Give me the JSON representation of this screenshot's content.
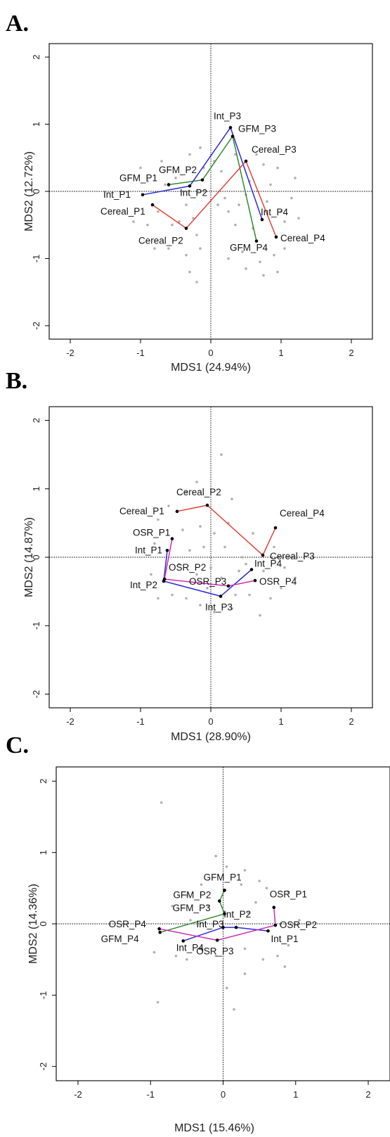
{
  "colors": {
    "GFM": "#2e8b2e",
    "Int": "#2b2bd4",
    "Cereal": "#e0453a",
    "OSR": "#d02ab8",
    "points": "#b0b0b0"
  },
  "chart_data": [
    {
      "type": "scatter",
      "panel": "A.",
      "xlabel": "MDS1 (24.94%)",
      "ylabel": "MDS2 (12.72%)",
      "xlim": [
        -2.3,
        2.3
      ],
      "ylim": [
        -2.2,
        2.2
      ],
      "xticks": [
        "-2",
        "-1",
        "0",
        "1",
        "2"
      ],
      "yticks": [
        "-2",
        "-1",
        "0",
        "1",
        "2"
      ],
      "reference_lines": {
        "x": 0,
        "y": 0
      },
      "series": [
        {
          "name": "GFM",
          "color_key": "GFM",
          "points": [
            {
              "label": "GFM_P1",
              "x": -0.6,
              "y": 0.1
            },
            {
              "label": "GFM_P2",
              "x": -0.12,
              "y": 0.17
            },
            {
              "label": "GFM_P3",
              "x": 0.31,
              "y": 0.82
            },
            {
              "label": "GFM_P4",
              "x": 0.65,
              "y": -0.74
            }
          ]
        },
        {
          "name": "Int",
          "color_key": "Int",
          "points": [
            {
              "label": "Int_P1",
              "x": -0.97,
              "y": -0.05
            },
            {
              "label": "Int_P2",
              "x": -0.3,
              "y": 0.08
            },
            {
              "label": "Int_P3",
              "x": 0.28,
              "y": 0.95
            },
            {
              "label": "Int_P4",
              "x": 0.73,
              "y": -0.42
            }
          ]
        },
        {
          "name": "Cereal",
          "color_key": "Cereal",
          "points": [
            {
              "label": "Cereal_P1",
              "x": -0.83,
              "y": -0.2
            },
            {
              "label": "Cereal_P2",
              "x": -0.35,
              "y": -0.55
            },
            {
              "label": "Cereal_P3",
              "x": 0.5,
              "y": 0.45
            },
            {
              "label": "Cereal_P4",
              "x": 0.93,
              "y": -0.68
            }
          ]
        }
      ],
      "background_points": [
        [
          -1.0,
          0.35
        ],
        [
          -1.1,
          -0.45
        ],
        [
          -0.9,
          -0.5
        ],
        [
          -0.75,
          -0.3
        ],
        [
          -0.7,
          0.45
        ],
        [
          -0.5,
          0.2
        ],
        [
          -0.55,
          -0.5
        ],
        [
          -0.45,
          -0.45
        ],
        [
          -0.25,
          -0.4
        ],
        [
          -0.2,
          -0.65
        ],
        [
          -0.15,
          -0.85
        ],
        [
          -0.35,
          -0.95
        ],
        [
          -0.6,
          -0.85
        ],
        [
          -0.8,
          -0.85
        ],
        [
          -0.3,
          0.55
        ],
        [
          -0.15,
          0.65
        ],
        [
          -0.1,
          0.35
        ],
        [
          -0.65,
          0.1
        ],
        [
          0.05,
          0.45
        ],
        [
          0.15,
          0.3
        ],
        [
          0.2,
          -0.1
        ],
        [
          0.25,
          -0.3
        ],
        [
          0.35,
          -0.5
        ],
        [
          0.4,
          -0.2
        ],
        [
          0.5,
          -0.05
        ],
        [
          0.55,
          0.15
        ],
        [
          0.6,
          -0.55
        ],
        [
          0.75,
          0.4
        ],
        [
          0.8,
          -0.15
        ],
        [
          0.85,
          0.1
        ],
        [
          1.0,
          -0.3
        ],
        [
          1.05,
          -0.45
        ],
        [
          1.15,
          -0.1
        ],
        [
          1.25,
          -0.4
        ],
        [
          0.45,
          -0.9
        ],
        [
          0.5,
          -1.15
        ],
        [
          0.75,
          -1.25
        ],
        [
          0.7,
          -1.05
        ],
        [
          0.95,
          -1.2
        ],
        [
          0.9,
          -0.95
        ],
        [
          1.05,
          -0.85
        ],
        [
          0.25,
          -1.0
        ],
        [
          -0.3,
          -1.2
        ],
        [
          -0.2,
          -1.35
        ],
        [
          -0.1,
          0.0
        ],
        [
          0.1,
          -0.2
        ],
        [
          0.35,
          0.55
        ],
        [
          0.65,
          0.55
        ],
        [
          0.95,
          0.35
        ],
        [
          1.2,
          0.2
        ],
        [
          -0.9,
          0.15
        ],
        [
          -0.35,
          -0.2
        ]
      ]
    },
    {
      "type": "scatter",
      "panel": "B.",
      "xlabel": "MDS1 (28.90%)",
      "ylabel": "MDS2 (14.87%)",
      "xlim": [
        -2.3,
        2.3
      ],
      "ylim": [
        -2.2,
        2.2
      ],
      "xticks": [
        "-2",
        "-1",
        "0",
        "1",
        "2"
      ],
      "yticks": [
        "-2",
        "-1",
        "0",
        "1",
        "2"
      ],
      "reference_lines": {
        "x": 0,
        "y": 0
      },
      "series": [
        {
          "name": "Cereal",
          "color_key": "Cereal",
          "points": [
            {
              "label": "Cereal_P1",
              "x": -0.48,
              "y": 0.67
            },
            {
              "label": "Cereal_P2",
              "x": -0.05,
              "y": 0.76
            },
            {
              "label": "Cereal_P3",
              "x": 0.74,
              "y": 0.03
            },
            {
              "label": "Cereal_P4",
              "x": 0.92,
              "y": 0.43
            }
          ]
        },
        {
          "name": "Int",
          "color_key": "Int",
          "points": [
            {
              "label": "Int_P1",
              "x": -0.62,
              "y": 0.1
            },
            {
              "label": "Int_P2",
              "x": -0.67,
              "y": -0.35
            },
            {
              "label": "Int_P3",
              "x": 0.14,
              "y": -0.57
            },
            {
              "label": "Int_P4",
              "x": 0.58,
              "y": -0.18
            }
          ]
        },
        {
          "name": "OSR",
          "color_key": "OSR",
          "points": [
            {
              "label": "OSR_P1",
              "x": -0.55,
              "y": 0.27
            },
            {
              "label": "OSR_P2",
              "x": -0.66,
              "y": -0.32
            },
            {
              "label": "OSR_P3",
              "x": 0.25,
              "y": -0.42
            },
            {
              "label": "OSR_P4",
              "x": 0.63,
              "y": -0.34
            }
          ]
        }
      ],
      "background_points": [
        [
          -0.2,
          1.1
        ],
        [
          0.15,
          1.5
        ],
        [
          -0.35,
          0.95
        ],
        [
          0.3,
          0.85
        ],
        [
          -0.75,
          0.55
        ],
        [
          -0.4,
          0.4
        ],
        [
          -0.15,
          0.45
        ],
        [
          0.05,
          0.35
        ],
        [
          0.25,
          0.5
        ],
        [
          0.6,
          0.35
        ],
        [
          0.9,
          0.15
        ],
        [
          1.05,
          -0.15
        ],
        [
          1.2,
          -0.3
        ],
        [
          1.0,
          -0.45
        ],
        [
          0.85,
          -0.6
        ],
        [
          0.55,
          -0.55
        ],
        [
          0.3,
          -0.75
        ],
        [
          0.05,
          -0.8
        ],
        [
          -0.15,
          -0.7
        ],
        [
          -0.35,
          -0.6
        ],
        [
          -0.55,
          -0.55
        ],
        [
          -0.75,
          -0.6
        ],
        [
          -0.85,
          -0.25
        ],
        [
          -0.8,
          0.2
        ],
        [
          -0.45,
          -0.1
        ],
        [
          -0.2,
          -0.25
        ],
        [
          0.0,
          -0.15
        ],
        [
          0.15,
          -0.3
        ],
        [
          0.4,
          -0.2
        ],
        [
          0.45,
          0.0
        ],
        [
          -0.3,
          0.1
        ],
        [
          -0.1,
          0.15
        ],
        [
          0.7,
          -0.85
        ],
        [
          0.5,
          -0.1
        ],
        [
          -0.6,
          0.75
        ],
        [
          0.2,
          0.15
        ],
        [
          0.75,
          -0.2
        ],
        [
          -0.05,
          -0.45
        ],
        [
          0.35,
          -0.55
        ]
      ]
    },
    {
      "type": "scatter",
      "panel": "C.",
      "xlabel": "MDS1 (15.46%)",
      "ylabel": "MDS2 (14.36%)",
      "xlim": [
        -2.3,
        2.3
      ],
      "ylim": [
        -2.2,
        2.2
      ],
      "xticks": [
        "-2",
        "-1",
        "0",
        "1",
        "2"
      ],
      "yticks": [
        "-2",
        "-1",
        "0",
        "1",
        "2"
      ],
      "reference_lines": {
        "x": 0,
        "y": 0
      },
      "series": [
        {
          "name": "GFM",
          "color_key": "GFM",
          "points": [
            {
              "label": "GFM_P1",
              "x": 0.02,
              "y": 0.47
            },
            {
              "label": "GFM_P2",
              "x": -0.05,
              "y": 0.32
            },
            {
              "label": "GFM_P3",
              "x": 0.02,
              "y": 0.14
            },
            {
              "label": "GFM_P4",
              "x": -0.87,
              "y": -0.12
            }
          ]
        },
        {
          "name": "Int",
          "color_key": "Int",
          "points": [
            {
              "label": "Int_P1",
              "x": 0.62,
              "y": -0.1
            },
            {
              "label": "Int_P2",
              "x": 0.18,
              "y": -0.05
            },
            {
              "label": "Int_P3",
              "x": 0.0,
              "y": -0.05
            },
            {
              "label": "Int_P4",
              "x": -0.55,
              "y": -0.24
            }
          ]
        },
        {
          "name": "OSR",
          "color_key": "OSR",
          "points": [
            {
              "label": "OSR_P1",
              "x": 0.7,
              "y": 0.23
            },
            {
              "label": "OSR_P2",
              "x": 0.72,
              "y": -0.02
            },
            {
              "label": "OSR_P3",
              "x": -0.08,
              "y": -0.23
            },
            {
              "label": "OSR_P4",
              "x": -0.88,
              "y": -0.07
            }
          ]
        }
      ],
      "background_points": [
        [
          -0.85,
          1.7
        ],
        [
          -0.1,
          0.95
        ],
        [
          0.05,
          0.8
        ],
        [
          0.3,
          0.75
        ],
        [
          0.6,
          0.5
        ],
        [
          0.9,
          0.45
        ],
        [
          0.45,
          0.3
        ],
        [
          0.35,
          0.15
        ],
        [
          -0.3,
          0.55
        ],
        [
          -0.5,
          0.4
        ],
        [
          -0.7,
          0.25
        ],
        [
          -0.45,
          0.05
        ],
        [
          -0.3,
          -0.35
        ],
        [
          -0.65,
          -0.45
        ],
        [
          -0.95,
          -0.4
        ],
        [
          -0.5,
          -0.5
        ],
        [
          -0.1,
          -0.45
        ],
        [
          0.3,
          -0.35
        ],
        [
          0.55,
          -0.5
        ],
        [
          0.9,
          -0.3
        ],
        [
          1.05,
          0.05
        ],
        [
          0.85,
          -0.6
        ],
        [
          0.3,
          -0.7
        ],
        [
          0.05,
          -0.9
        ],
        [
          0.15,
          -1.2
        ],
        [
          -0.9,
          -1.1
        ],
        [
          0.25,
          0.55
        ],
        [
          -0.2,
          0.25
        ],
        [
          0.5,
          0.6
        ],
        [
          0.75,
          -0.45
        ]
      ]
    }
  ]
}
